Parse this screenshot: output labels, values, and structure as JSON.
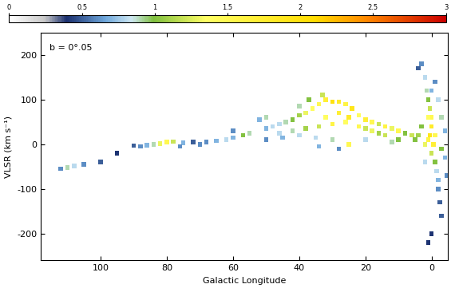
{
  "chart_data": {
    "type": "heatmap",
    "annotation": "b = 0°.05",
    "x_label": "Galactic Longitude",
    "y_label": "VLSR (km s⁻¹)",
    "xlim": [
      118,
      -5
    ],
    "xticks": [
      100,
      80,
      60,
      40,
      20,
      0
    ],
    "ylim": [
      -260,
      250
    ],
    "yticks": [
      -200,
      -100,
      0,
      100,
      200
    ],
    "colorbar_range": [
      0,
      3
    ],
    "colorbar_ticks": [
      0,
      0.5,
      1,
      1.5,
      2,
      2.5,
      3
    ],
    "cells": [
      [
        3,
        180,
        0.6
      ],
      [
        2,
        150,
        0.8
      ],
      [
        1.5,
        120,
        0.9
      ],
      [
        1,
        100,
        1.0
      ],
      [
        0.5,
        80,
        1.2
      ],
      [
        0,
        60,
        1.5
      ],
      [
        0,
        40,
        1.8
      ],
      [
        0.5,
        20,
        1.9
      ],
      [
        1,
        10,
        1.6
      ],
      [
        -0.5,
        0,
        1.7
      ],
      [
        0,
        -20,
        1.2
      ],
      [
        -1,
        -40,
        1.0
      ],
      [
        -1.5,
        -60,
        0.8
      ],
      [
        -2,
        -80,
        0.7
      ],
      [
        -2,
        -100,
        0.6
      ],
      [
        -2.5,
        -130,
        0.5
      ],
      [
        -3,
        -160,
        0.5
      ],
      [
        0,
        -200,
        0.4
      ],
      [
        1,
        -220,
        0.4
      ],
      [
        4,
        170,
        0.5
      ],
      [
        -1,
        140,
        0.6
      ],
      [
        -2,
        100,
        0.8
      ],
      [
        -3,
        60,
        0.9
      ],
      [
        -4,
        30,
        0.7
      ],
      [
        3,
        40,
        1.0
      ],
      [
        4,
        20,
        1.1
      ],
      [
        2,
        0,
        1.3
      ],
      [
        5,
        10,
        1.0
      ],
      [
        -4,
        -30,
        0.7
      ],
      [
        -4.5,
        -70,
        0.6
      ],
      [
        1,
        60,
        1.4
      ],
      [
        -1,
        20,
        1.5
      ],
      [
        2,
        -40,
        0.8
      ],
      [
        -3,
        -10,
        1.0
      ],
      [
        0,
        120,
        0.7
      ],
      [
        6,
        20,
        1.2
      ],
      [
        8,
        25,
        1.0
      ],
      [
        10,
        30,
        1.5
      ],
      [
        12,
        35,
        1.3
      ],
      [
        14,
        40,
        1.6
      ],
      [
        16,
        45,
        1.2
      ],
      [
        18,
        50,
        1.5
      ],
      [
        20,
        55,
        1.7
      ],
      [
        22,
        65,
        1.4
      ],
      [
        24,
        80,
        1.9
      ],
      [
        26,
        90,
        1.6
      ],
      [
        28,
        95,
        1.8
      ],
      [
        30,
        95,
        2.0
      ],
      [
        32,
        100,
        1.7
      ],
      [
        34,
        90,
        1.5
      ],
      [
        36,
        80,
        1.4
      ],
      [
        38,
        70,
        1.3
      ],
      [
        40,
        65,
        1.1
      ],
      [
        42,
        55,
        1.0
      ],
      [
        44,
        50,
        0.9
      ],
      [
        46,
        45,
        0.8
      ],
      [
        48,
        40,
        0.8
      ],
      [
        50,
        35,
        0.7
      ],
      [
        10,
        10,
        1.0
      ],
      [
        14,
        20,
        1.2
      ],
      [
        18,
        30,
        1.3
      ],
      [
        22,
        40,
        1.5
      ],
      [
        26,
        50,
        1.4
      ],
      [
        30,
        45,
        1.6
      ],
      [
        34,
        40,
        1.2
      ],
      [
        38,
        35,
        1.1
      ],
      [
        42,
        30,
        0.9
      ],
      [
        46,
        25,
        0.8
      ],
      [
        50,
        60,
        0.9
      ],
      [
        52,
        55,
        0.7
      ],
      [
        25,
        60,
        1.8
      ],
      [
        28,
        70,
        1.7
      ],
      [
        32,
        60,
        1.4
      ],
      [
        20,
        35,
        1.2
      ],
      [
        16,
        25,
        1.1
      ],
      [
        12,
        5,
        0.9
      ],
      [
        20,
        10,
        0.8
      ],
      [
        25,
        0,
        1.5
      ],
      [
        30,
        10,
        0.9
      ],
      [
        35,
        15,
        0.8
      ],
      [
        40,
        20,
        0.8
      ],
      [
        45,
        15,
        0.7
      ],
      [
        50,
        10,
        0.6
      ],
      [
        28,
        -10,
        0.6
      ],
      [
        34,
        -5,
        0.7
      ],
      [
        33,
        110,
        1.2
      ],
      [
        37,
        100,
        1.0
      ],
      [
        40,
        85,
        0.9
      ],
      [
        55,
        25,
        0.9
      ],
      [
        57,
        20,
        1.0
      ],
      [
        60,
        15,
        0.7
      ],
      [
        62,
        10,
        0.8
      ],
      [
        65,
        8,
        0.7
      ],
      [
        68,
        5,
        0.6
      ],
      [
        70,
        0,
        0.6
      ],
      [
        72,
        5,
        0.5
      ],
      [
        75,
        3,
        0.7
      ],
      [
        78,
        6,
        1.2
      ],
      [
        80,
        5,
        1.5
      ],
      [
        82,
        2,
        1.3
      ],
      [
        84,
        0,
        0.9
      ],
      [
        86,
        -2,
        0.7
      ],
      [
        88,
        -5,
        0.6
      ],
      [
        90,
        -3,
        0.5
      ],
      [
        76,
        -5,
        0.6
      ],
      [
        60,
        30,
        0.6
      ],
      [
        105,
        -45,
        0.6
      ],
      [
        108,
        -48,
        0.8
      ],
      [
        110,
        -52,
        0.9
      ],
      [
        112,
        -55,
        0.6
      ],
      [
        100,
        -40,
        0.5
      ],
      [
        95,
        -20,
        0.4
      ]
    ]
  }
}
